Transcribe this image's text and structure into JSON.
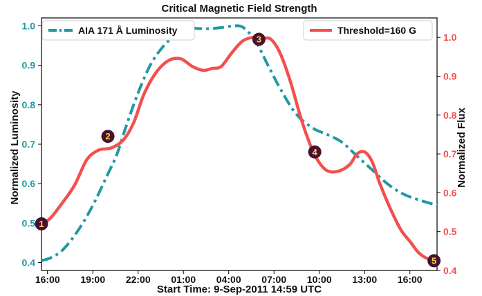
{
  "chart_data": {
    "type": "line",
    "title": "Critical Magnetic Field Strength",
    "xlabel": "Start Time: 9-Sep-2011 14:59 UTC",
    "ylabel_left": "Normalized Luminosity",
    "ylabel_right": "Normalized Flux",
    "x_unit": "hours after 2011-09-09 14:59 UTC",
    "xlim": [
      0.6,
      26.8
    ],
    "ylim_left": [
      0.38,
      1.02
    ],
    "ylim_right": [
      0.4,
      1.05
    ],
    "x_ticks": [
      {
        "value": 1.0,
        "label": "16:00"
      },
      {
        "value": 4.0,
        "label": "19:00"
      },
      {
        "value": 7.0,
        "label": "22:00"
      },
      {
        "value": 10.0,
        "label": "01:00"
      },
      {
        "value": 13.0,
        "label": "04:00"
      },
      {
        "value": 16.0,
        "label": "07:00"
      },
      {
        "value": 19.0,
        "label": "10:00"
      },
      {
        "value": 22.0,
        "label": "13:00"
      },
      {
        "value": 25.0,
        "label": "16:00"
      }
    ],
    "y_ticks_left": [
      "0.4",
      "0.5",
      "0.6",
      "0.7",
      "0.8",
      "0.9",
      "1.0"
    ],
    "y_ticks_right": [
      "0.4",
      "0.5",
      "0.6",
      "0.7",
      "0.8",
      "0.9",
      "1.0"
    ],
    "left_color": "#1f9aa3",
    "right_color": "#f2504e",
    "grid": false,
    "series": [
      {
        "name": "AIA 171 Å Luminosity",
        "axis": "left",
        "style": "dashdot",
        "color": "#1f9aa3",
        "x": [
          0.6,
          1.2,
          2.0,
          3.0,
          4.0,
          5.0,
          5.6,
          6.2,
          7.0,
          7.8,
          8.6,
          9.4,
          10.2,
          11.0,
          11.8,
          12.6,
          13.4,
          14.0,
          14.8,
          15.6,
          16.5,
          17.5,
          18.6,
          19.5,
          20.5,
          21.5,
          22.5,
          23.5,
          24.5,
          25.5,
          26.8
        ],
        "y": [
          0.405,
          0.412,
          0.432,
          0.48,
          0.545,
          0.625,
          0.675,
          0.745,
          0.83,
          0.9,
          0.945,
          0.975,
          0.995,
          0.993,
          0.993,
          0.996,
          1.0,
          0.995,
          0.96,
          0.9,
          0.835,
          0.775,
          0.74,
          0.725,
          0.705,
          0.67,
          0.635,
          0.6,
          0.575,
          0.56,
          0.545
        ]
      },
      {
        "name": "Threshold=160 G",
        "axis": "right",
        "style": "solid",
        "color": "#f2504e",
        "x": [
          0.6,
          1.2,
          2.0,
          2.8,
          3.6,
          4.4,
          5.2,
          6.0,
          6.7,
          7.4,
          8.2,
          9.0,
          9.8,
          10.6,
          11.3,
          11.9,
          12.5,
          13.2,
          13.9,
          14.6,
          15.3,
          15.8,
          16.4,
          17.1,
          17.8,
          18.6,
          19.4,
          20.2,
          21.0,
          21.5,
          22.0,
          22.5,
          23.0,
          23.7,
          24.4,
          25.0,
          25.6,
          26.2,
          26.8
        ],
        "y": [
          0.52,
          0.535,
          0.575,
          0.62,
          0.685,
          0.71,
          0.715,
          0.735,
          0.78,
          0.855,
          0.91,
          0.94,
          0.945,
          0.925,
          0.915,
          0.92,
          0.925,
          0.96,
          0.99,
          1.0,
          0.998,
          0.995,
          0.96,
          0.885,
          0.79,
          0.705,
          0.66,
          0.655,
          0.672,
          0.7,
          0.705,
          0.68,
          0.625,
          0.56,
          0.505,
          0.475,
          0.445,
          0.43,
          0.425
        ]
      }
    ],
    "annotations": [
      {
        "label": "1",
        "x": 0.6,
        "y": 0.52,
        "axis": "right"
      },
      {
        "label": "2",
        "x": 5.0,
        "y": 0.72,
        "axis": "left"
      },
      {
        "label": "3",
        "x": 15.0,
        "y": 0.995,
        "axis": "right"
      },
      {
        "label": "4",
        "x": 18.7,
        "y": 0.705,
        "axis": "right"
      },
      {
        "label": "5",
        "x": 26.6,
        "y": 0.425,
        "axis": "right"
      }
    ],
    "annotation_fill": "#4a1030",
    "annotation_text_color": "#f5d94a",
    "legend_left": {
      "placement": "top-left"
    },
    "legend_right": {
      "placement": "top-right"
    }
  }
}
